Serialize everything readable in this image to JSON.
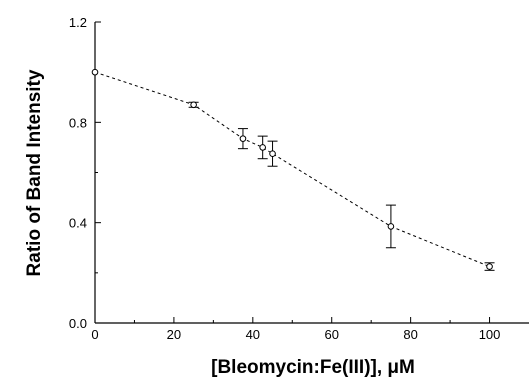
{
  "chart_data": {
    "type": "scatter",
    "title": "",
    "xlabel": "[Bleomycin:Fe(III)],  μM",
    "ylabel": "Ratio of Band Intensity",
    "xlim": [
      0,
      110
    ],
    "ylim": [
      0.0,
      1.2
    ],
    "x_ticks": [
      0,
      20,
      40,
      60,
      80,
      100
    ],
    "x_tick_labels": [
      "0",
      "20",
      "40",
      "60",
      "80",
      "100"
    ],
    "y_ticks": [
      0.0,
      0.4,
      0.8,
      1.2
    ],
    "y_tick_labels": [
      "0.0",
      "0.4",
      "0.8",
      "1.2"
    ],
    "grid": false,
    "line_style": "dashed",
    "marker": "open-circle",
    "series": [
      {
        "x": [
          0,
          25,
          37.5,
          42.5,
          45,
          75,
          100
        ],
        "y": [
          1.0,
          0.87,
          0.735,
          0.7,
          0.675,
          0.385,
          0.225
        ],
        "error": [
          0,
          0.01,
          0.04,
          0.045,
          0.05,
          0.085,
          0.015
        ]
      }
    ]
  }
}
